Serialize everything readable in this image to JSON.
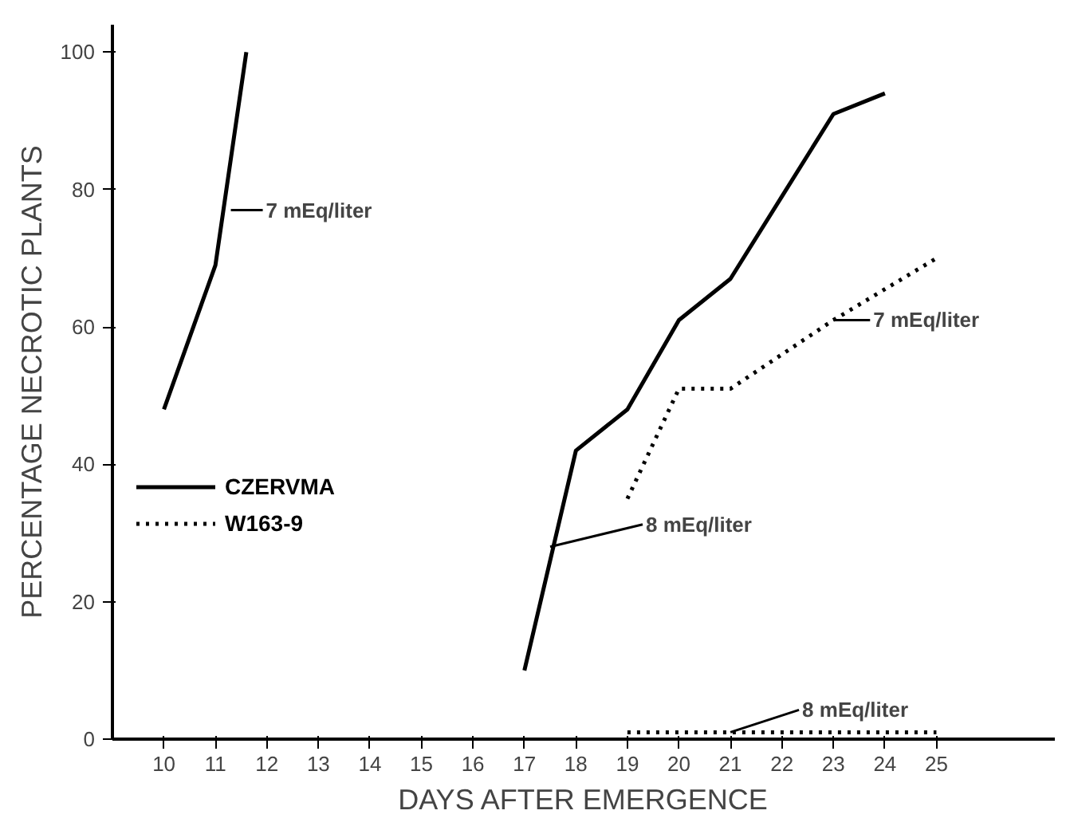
{
  "chart_data": {
    "type": "line",
    "xlabel": "DAYS AFTER EMERGENCE",
    "ylabel": "PERCENTAGE NECROTIC PLANTS",
    "series": [
      {
        "name": "CZERVMA",
        "color": "#000000",
        "line_style": "solid",
        "x": [
          10,
          11,
          11.6
        ],
        "values": [
          48,
          69,
          100
        ]
      },
      {
        "color": "#000000",
        "line_style": "solid",
        "x": [
          17,
          18,
          19,
          20,
          21,
          22,
          23,
          24
        ],
        "values": [
          10,
          42,
          48,
          61,
          67,
          79,
          91,
          94
        ]
      },
      {
        "name": "W163-9",
        "color": "#000000",
        "line_style": "dotted",
        "x": [
          19,
          20,
          21,
          22,
          23,
          24,
          25
        ],
        "values": [
          35,
          51,
          51,
          56,
          61,
          65.5,
          70
        ]
      },
      {
        "color": "#000000",
        "line_style": "dotted",
        "x": [
          19,
          25
        ],
        "values": [
          1,
          1
        ]
      }
    ],
    "annotations": [
      {
        "text": "7 mEq/liter",
        "x": 11.3,
        "y": 77
      },
      {
        "text": "8 mEq/liter",
        "x": 17.5,
        "y": 28
      },
      {
        "text": "7 mEq/liter",
        "x": 23,
        "y": 61
      },
      {
        "text": "8 mEq/liter",
        "x": 21,
        "y": 1
      }
    ],
    "xlim": [
      9,
      27.3
    ],
    "ylim": [
      0,
      104
    ],
    "xticks": [
      10,
      11,
      12,
      13,
      14,
      15,
      16,
      17,
      18,
      19,
      20,
      21,
      22,
      23,
      24,
      25
    ],
    "yticks": [
      0,
      20,
      40,
      60,
      80,
      100
    ],
    "grid": false,
    "legend": "center left",
    "marker": "none"
  }
}
